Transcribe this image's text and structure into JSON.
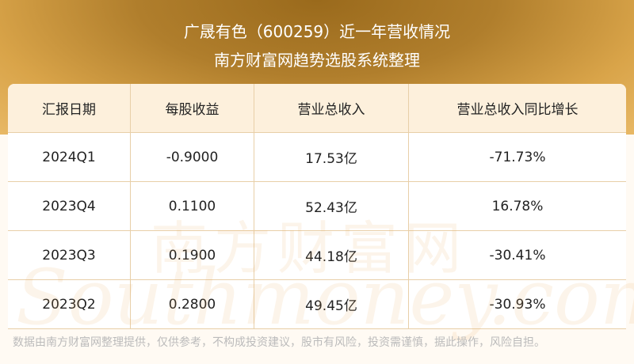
{
  "header": {
    "title": "广晟有色（600259）近一年营收情况",
    "subtitle": "南方财富网趋势选股系统整理"
  },
  "watermark": {
    "cn": "南方财富网",
    "en": "Southmoney.com"
  },
  "chart_data": {
    "type": "table",
    "columns": [
      "汇报日期",
      "每股收益",
      "营业总收入",
      "营业总收入同比增长"
    ],
    "rows": [
      [
        "2024Q1",
        "-0.9000",
        "17.53亿",
        "-71.73%"
      ],
      [
        "2023Q4",
        "0.1100",
        "52.43亿",
        "16.78%"
      ],
      [
        "2023Q3",
        "0.1900",
        "44.18亿",
        "-30.41%"
      ],
      [
        "2023Q2",
        "0.2800",
        "49.45亿",
        "-30.93%"
      ]
    ]
  },
  "footer": "数据由南方财富网整理提供，仅供参考，不构成投资建议，股市有风险，投资需谨慎，据此操作，风险自担。",
  "colors": {
    "banner": "#b07e2c",
    "header_row": "#fdf0dc",
    "border": "#e8cfa8"
  }
}
